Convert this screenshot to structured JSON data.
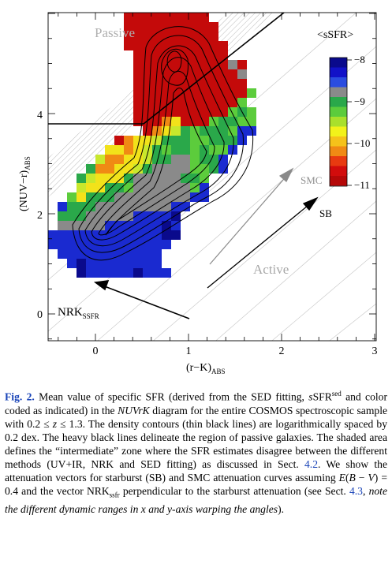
{
  "figure": {
    "axes": {
      "xlabel_main": "(r−K)",
      "xlabel_sub": "ABS",
      "ylabel_main": "(NUV−r)",
      "ylabel_sub": "ABS",
      "x_ticks": [
        "0",
        "1",
        "2",
        "3"
      ],
      "y_ticks": [
        "0",
        "2",
        "4"
      ]
    },
    "annotations": {
      "passive": "Passive",
      "active": "Active",
      "smc": "SMC",
      "sb": "SB",
      "nrk_main": "NRK",
      "nrk_sub": "SSFR"
    },
    "colorbar": {
      "title": "<sSFR>",
      "tick_labels": [
        "−8",
        "−9",
        "−10",
        "−11"
      ]
    }
  },
  "caption": {
    "fig_label": "Fig. 2.",
    "s1": " Mean value of specific SFR (derived from the SED fitting, ",
    "s2": "s",
    "s3": "SFR",
    "s4": "sed",
    "s5": " and color coded as indicated) in the ",
    "s6": "NUVrK",
    "s7": " diagram for the entire COSMOS spectroscopic sample with 0.2 ≤ ",
    "s8": "z",
    "s9": " ≤ 1.3. The density contours (thin black lines) are logarithmically spaced by 0.2 dex. The heavy black lines delineate the region of passive galaxies. The shaded area defines the “intermediate” zone where the SFR estimates disagree between the different methods (UV+IR, NRK and SED fitting) as discussed in Sect. ",
    "ref1": "4.2",
    "s10": ". We show the attenuation vectors for starburst (SB) and SMC attenuation curves assuming ",
    "s11": "E",
    "s12": "(",
    "s13": "B",
    "s14": " − ",
    "s15": "V",
    "s16": ") = 0.4 and the vector NRK",
    "s17": "ssfr",
    "s18": " perpendicular to the starburst attenuation (see Sect. ",
    "ref2": "4.3",
    "s19": ", ",
    "s20": "note the different dynamic ranges in x and y-axis warping the angles",
    "s21": ")."
  },
  "colors": {
    "link": "#1a44b8",
    "sSFR_scale": [
      "#0a0a8c",
      "#1212c8",
      "#2b4de0",
      "#8a8a8a",
      "#2aa84a",
      "#5ccc3c",
      "#a9e02c",
      "#f2f21a",
      "#f5c21a",
      "#f08a14",
      "#e83a10",
      "#d20c0c",
      "#b50808"
    ]
  }
}
